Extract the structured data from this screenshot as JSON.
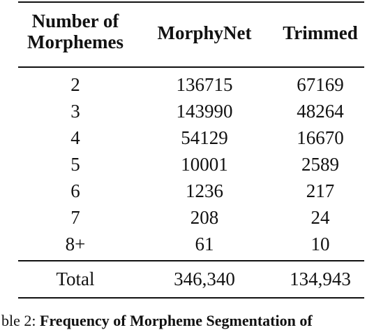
{
  "table": {
    "headers": [
      "Number of Morphemes",
      "MorphyNet",
      "Trimmed"
    ],
    "header_lines": [
      [
        "Number of",
        "Morphemes"
      ],
      [
        "MorphyNet"
      ],
      [
        "Trimmed"
      ]
    ],
    "rows": [
      [
        "2",
        "136715",
        "67169"
      ],
      [
        "3",
        "143990",
        "48264"
      ],
      [
        "4",
        "54129",
        "16670"
      ],
      [
        "5",
        "10001",
        "2589"
      ],
      [
        "6",
        "1236",
        "217"
      ],
      [
        "7",
        "208",
        "24"
      ],
      [
        "8+",
        "61",
        "10"
      ]
    ],
    "total": [
      "Total",
      "346,340",
      "134,943"
    ]
  },
  "caption": {
    "label": "ble 2:",
    "text": "Frequency of Morpheme Segmentation of"
  }
}
